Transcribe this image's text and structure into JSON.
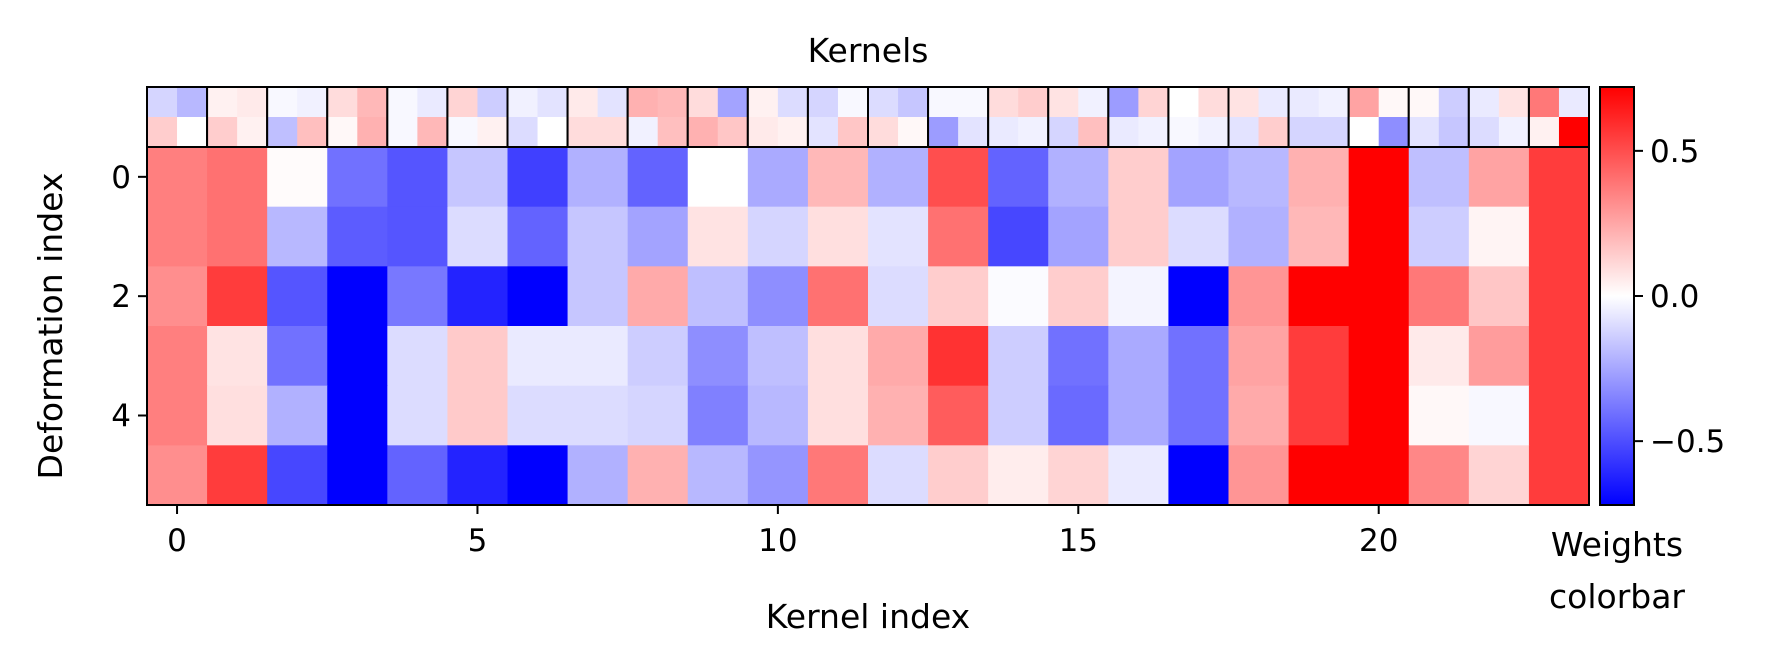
{
  "chart_data": {
    "type": "heatmap",
    "title": "Kernels",
    "xlabel": "Kernel index",
    "ylabel": "Deformation index",
    "x_ticks": [
      0,
      5,
      10,
      15,
      20
    ],
    "y_ticks": [
      0,
      2,
      4
    ],
    "xlim": [
      -0.5,
      23.5
    ],
    "ylim": [
      5.5,
      -0.5
    ],
    "colormap": "bwr",
    "colors": {
      "low": "#0000ff",
      "mid": "#ffffff",
      "high": "#ff0000"
    },
    "color_range": [
      -0.72,
      0.72
    ],
    "colorbar": {
      "label_line1": "Weights",
      "label_line2": "colorbar",
      "ticks": [
        0.5,
        0.0,
        -0.5
      ],
      "tick_labels": [
        "0.5",
        "0.0",
        "−0.5"
      ]
    },
    "values": [
      [
        0.36,
        0.4,
        0.01,
        -0.4,
        -0.48,
        -0.16,
        -0.54,
        -0.22,
        -0.44,
        0.0,
        -0.24,
        0.2,
        -0.22,
        0.5,
        -0.44,
        -0.22,
        0.14,
        -0.26,
        -0.2,
        0.22,
        0.72,
        -0.18,
        0.26,
        0.55
      ],
      [
        0.36,
        0.4,
        -0.2,
        -0.46,
        -0.48,
        -0.1,
        -0.44,
        -0.16,
        -0.26,
        0.08,
        -0.12,
        0.09,
        -0.08,
        0.4,
        -0.52,
        -0.26,
        0.14,
        -0.1,
        -0.22,
        0.2,
        0.72,
        -0.14,
        0.03,
        0.55
      ],
      [
        0.32,
        0.55,
        -0.48,
        -0.72,
        -0.38,
        -0.62,
        -0.72,
        -0.16,
        0.24,
        -0.18,
        -0.32,
        0.4,
        -0.1,
        0.14,
        -0.01,
        0.14,
        -0.03,
        -0.72,
        0.3,
        0.72,
        0.72,
        0.38,
        0.16,
        0.55
      ],
      [
        0.36,
        0.08,
        -0.4,
        -0.72,
        -0.1,
        0.15,
        -0.06,
        -0.06,
        -0.14,
        -0.32,
        -0.18,
        0.09,
        0.24,
        0.58,
        -0.14,
        -0.4,
        -0.24,
        -0.4,
        0.26,
        0.55,
        0.72,
        0.06,
        0.28,
        0.55
      ],
      [
        0.36,
        0.09,
        -0.22,
        -0.72,
        -0.1,
        0.15,
        -0.1,
        -0.1,
        -0.12,
        -0.36,
        -0.2,
        0.09,
        0.22,
        0.46,
        -0.14,
        -0.42,
        -0.24,
        -0.4,
        0.24,
        0.55,
        0.72,
        0.02,
        -0.02,
        0.55
      ],
      [
        0.32,
        0.55,
        -0.52,
        -0.72,
        -0.44,
        -0.62,
        -0.72,
        -0.22,
        0.22,
        -0.2,
        -0.3,
        0.38,
        -0.1,
        0.14,
        0.05,
        0.12,
        -0.06,
        -0.72,
        0.3,
        0.72,
        0.72,
        0.34,
        0.12,
        0.55
      ]
    ],
    "kernels": [
      [
        [
          -0.12,
          -0.2
        ],
        [
          0.14,
          0.0
        ]
      ],
      [
        [
          0.04,
          0.06
        ],
        [
          0.14,
          0.04
        ]
      ],
      [
        [
          -0.02,
          -0.04
        ],
        [
          -0.18,
          0.18
        ]
      ],
      [
        [
          0.1,
          0.2
        ],
        [
          0.02,
          0.22
        ]
      ],
      [
        [
          -0.02,
          -0.06
        ],
        [
          -0.02,
          0.2
        ]
      ],
      [
        [
          0.12,
          -0.14
        ],
        [
          -0.02,
          0.04
        ]
      ],
      [
        [
          -0.04,
          -0.08
        ],
        [
          -0.1,
          0.0
        ]
      ],
      [
        [
          0.06,
          -0.08
        ],
        [
          0.1,
          0.1
        ]
      ],
      [
        [
          0.22,
          0.2
        ],
        [
          -0.04,
          0.18
        ]
      ],
      [
        [
          0.1,
          -0.26
        ],
        [
          0.22,
          0.16
        ]
      ],
      [
        [
          0.04,
          -0.1
        ],
        [
          0.06,
          0.04
        ]
      ],
      [
        [
          -0.12,
          -0.02
        ],
        [
          -0.08,
          0.16
        ]
      ],
      [
        [
          -0.1,
          -0.16
        ],
        [
          0.1,
          0.02
        ]
      ],
      [
        [
          -0.02,
          -0.02
        ],
        [
          -0.28,
          -0.08
        ]
      ],
      [
        [
          0.1,
          0.14
        ],
        [
          -0.06,
          -0.04
        ]
      ],
      [
        [
          0.08,
          -0.04
        ],
        [
          -0.12,
          0.18
        ]
      ],
      [
        [
          -0.28,
          0.12
        ],
        [
          -0.06,
          -0.04
        ]
      ],
      [
        [
          0.0,
          0.1
        ],
        [
          -0.02,
          -0.04
        ]
      ],
      [
        [
          0.08,
          -0.06
        ],
        [
          -0.08,
          0.14
        ]
      ],
      [
        [
          -0.06,
          -0.04
        ],
        [
          -0.12,
          -0.12
        ]
      ],
      [
        [
          0.26,
          0.02
        ],
        [
          0.0,
          -0.32
        ]
      ],
      [
        [
          0.02,
          -0.14
        ],
        [
          -0.08,
          -0.16
        ]
      ],
      [
        [
          -0.06,
          0.08
        ],
        [
          -0.1,
          -0.04
        ]
      ],
      [
        [
          0.38,
          -0.06
        ],
        [
          0.04,
          0.72
        ]
      ]
    ]
  }
}
